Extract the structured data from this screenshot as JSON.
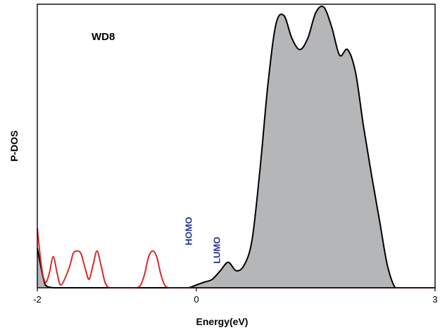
{
  "chart_data": {
    "type": "area",
    "title": "",
    "panel_label": "WD8",
    "xlabel": "Energy(eV)",
    "ylabel": "P-DOS",
    "xlim": [
      -2,
      3
    ],
    "ylim": [
      0,
      1.0
    ],
    "x_ticks": [
      -2,
      0,
      3
    ],
    "x_tick_labels": [
      "-2",
      "0",
      "3"
    ],
    "grid": false,
    "legend": "none",
    "colors": {
      "total_fill": "#b5b6b8",
      "total_line": "#000000",
      "orbital_line": "#d42b2b",
      "annotation": "#2a3590",
      "frame": "#000000"
    },
    "series": [
      {
        "style": "filled-area",
        "x": [
          -2.0,
          -1.9,
          -1.8,
          -1.7,
          -1.6,
          -1.5,
          -1.4,
          -1.3,
          -1.2,
          -1.1,
          -1.0,
          -0.9,
          -0.8,
          -0.7,
          -0.6,
          -0.5,
          -0.4,
          -0.3,
          -0.2,
          -0.1,
          0.0,
          0.1,
          0.2,
          0.3,
          0.4,
          0.5,
          0.6,
          0.7,
          0.8,
          0.9,
          1.0,
          1.1,
          1.2,
          1.3,
          1.4,
          1.5,
          1.6,
          1.7,
          1.8,
          1.9,
          2.0,
          2.1,
          2.2,
          2.3,
          2.4,
          2.5,
          2.6,
          2.7,
          2.8,
          2.9,
          3.0
        ],
        "values": [
          0.14,
          0.01,
          0.0,
          0.0,
          0.0,
          0.0,
          0.0,
          0.0,
          0.0,
          0.0,
          0.0,
          0.0,
          0.0,
          0.0,
          0.0,
          0.0,
          0.0,
          0.0,
          0.0,
          0.0,
          0.01,
          0.02,
          0.03,
          0.06,
          0.09,
          0.06,
          0.08,
          0.17,
          0.42,
          0.72,
          0.93,
          0.96,
          0.88,
          0.84,
          0.88,
          0.97,
          0.99,
          0.92,
          0.82,
          0.84,
          0.76,
          0.57,
          0.4,
          0.24,
          0.08,
          0.0,
          0.0,
          0.0,
          0.0,
          0.0,
          0.0
        ]
      },
      {
        "style": "line",
        "x": [
          -2.0,
          -1.95,
          -1.9,
          -1.85,
          -1.8,
          -1.75,
          -1.7,
          -1.6,
          -1.55,
          -1.5,
          -1.45,
          -1.4,
          -1.35,
          -1.3,
          -1.25,
          -1.2,
          -1.15,
          -1.1,
          -1.05,
          -1.0,
          -0.95,
          -0.9,
          -0.85,
          -0.8,
          -0.75,
          -0.7,
          -0.65,
          -0.6,
          -0.55,
          -0.5,
          -0.45,
          -0.4,
          -0.35,
          -0.3,
          -0.25,
          -0.2,
          -0.15,
          -0.1,
          -0.05,
          0.0,
          0.1,
          0.2,
          0.3,
          0.4,
          0.5,
          0.6,
          0.7,
          0.8,
          0.9,
          1.0,
          1.2,
          1.4,
          1.6,
          1.8,
          2.0,
          2.2,
          2.4,
          2.6,
          2.8,
          3.0
        ],
        "values": [
          0.21,
          0.08,
          0.02,
          0.05,
          0.11,
          0.05,
          0.01,
          0.07,
          0.12,
          0.13,
          0.12,
          0.07,
          0.03,
          0.08,
          0.13,
          0.08,
          0.02,
          0.0,
          0.0,
          0.0,
          0.0,
          0.0,
          0.0,
          0.0,
          0.0,
          0.01,
          0.05,
          0.11,
          0.13,
          0.11,
          0.05,
          0.01,
          0.0,
          0.0,
          0.0,
          0.0,
          0.0,
          0.0,
          0.0,
          0.0,
          0.0,
          0.0,
          0.0,
          0.0,
          0.0,
          0.0,
          0.0,
          0.0,
          0.0,
          0.0,
          0.0,
          0.0,
          0.0,
          0.0,
          0.0,
          0.0,
          0.0,
          0.0,
          0.0,
          0.0
        ]
      }
    ],
    "annotations": [
      {
        "text": "HOMO",
        "x": -0.1,
        "y": 0.14
      },
      {
        "text": "LUMO",
        "x": 0.25,
        "y": 0.075
      }
    ]
  }
}
